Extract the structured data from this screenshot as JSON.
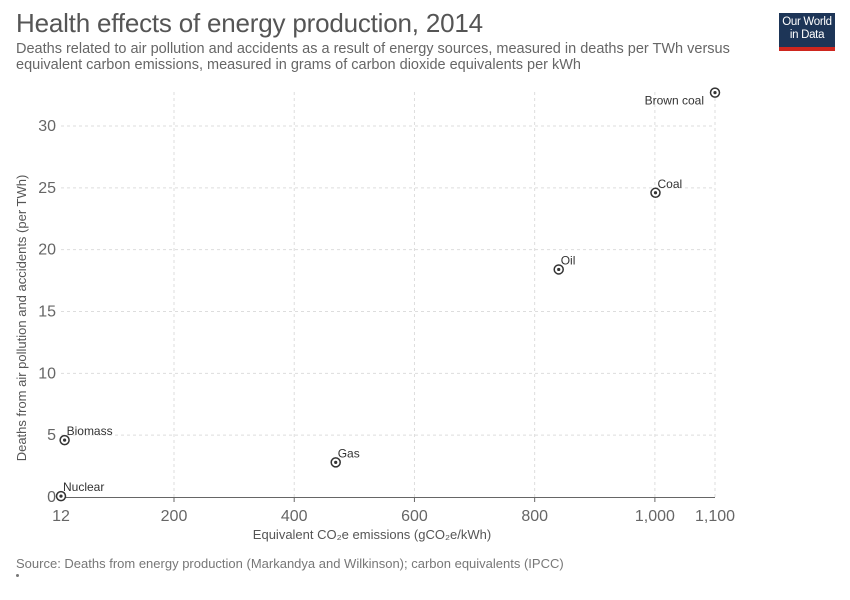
{
  "header": {
    "title": "Health effects of energy production, 2014",
    "subtitle": "Deaths related to air pollution and accidents as a result of energy sources, measured in deaths per TWh versus equivalent carbon emissions, measured in grams of carbon dioxide equivalents per kWh",
    "logo_line1": "Our World",
    "logo_line2": "in Data"
  },
  "footer": {
    "source": "Source: Deaths from energy production (Markandya and Wilkinson); carbon equivalents (IPCC)"
  },
  "colors": {
    "grid": "#dddddd",
    "axis": "#666666",
    "marker": "#333333",
    "logo_bg": "#1d3557",
    "logo_accent": "#ce261e"
  },
  "chart_data": {
    "type": "scatter",
    "xlabel": "Equivalent CO₂e emissions (gCO₂e/kWh)",
    "ylabel": "Deaths from air pollution and accidents (per TWh)",
    "x_ticks": [
      200,
      400,
      600,
      800,
      1000
    ],
    "x_tick_labels": [
      "200",
      "400",
      "600",
      "800",
      "1,000"
    ],
    "x_min_label": "12",
    "x_max_label": "1,100",
    "xlim": [
      12,
      1100
    ],
    "y_ticks": [
      0,
      5,
      10,
      15,
      20,
      25,
      30
    ],
    "y_tick_labels": [
      "0",
      "5",
      "10",
      "15",
      "20",
      "25",
      "30"
    ],
    "ylim": [
      0,
      33
    ],
    "grid": true,
    "points": [
      {
        "label": "Nuclear",
        "x": 12,
        "y": 0.07
      },
      {
        "label": "Biomass",
        "x": 18,
        "y": 4.6
      },
      {
        "label": "Gas",
        "x": 469,
        "y": 2.8
      },
      {
        "label": "Oil",
        "x": 840,
        "y": 18.4
      },
      {
        "label": "Coal",
        "x": 1001,
        "y": 24.6
      },
      {
        "label": "Brown coal",
        "x": 1100,
        "y": 32.7
      }
    ]
  }
}
